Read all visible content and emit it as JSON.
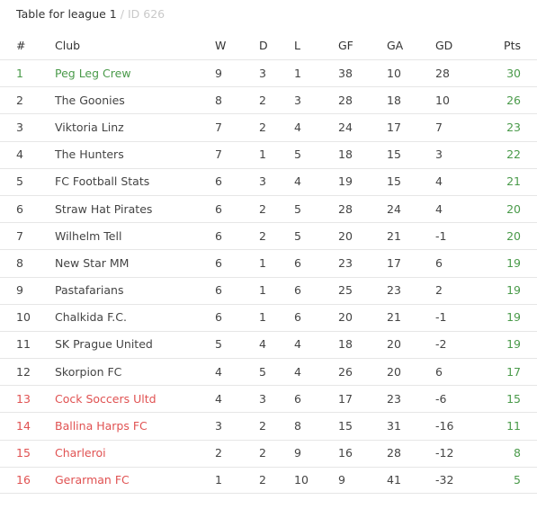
{
  "title": {
    "main": "Table for league 1",
    "separator": "/",
    "id_text": "ID 626"
  },
  "colors": {
    "top_zone": "#4a9a4a",
    "relegation_zone": "#e05252",
    "points": "#4a9a4a"
  },
  "columns": {
    "pos": "#",
    "club": "Club",
    "w": "W",
    "d": "D",
    "l": "L",
    "gf": "GF",
    "ga": "GA",
    "gd": "GD",
    "pts": "Pts"
  },
  "rows": [
    {
      "pos": "1",
      "club": "Peg Leg Crew",
      "w": "9",
      "d": "3",
      "l": "1",
      "gf": "38",
      "ga": "10",
      "gd": "28",
      "pts": "30",
      "zone": "top"
    },
    {
      "pos": "2",
      "club": "The Goonies",
      "w": "8",
      "d": "2",
      "l": "3",
      "gf": "28",
      "ga": "18",
      "gd": "10",
      "pts": "26",
      "zone": ""
    },
    {
      "pos": "3",
      "club": "Viktoria Linz",
      "w": "7",
      "d": "2",
      "l": "4",
      "gf": "24",
      "ga": "17",
      "gd": "7",
      "pts": "23",
      "zone": ""
    },
    {
      "pos": "4",
      "club": "The Hunters",
      "w": "7",
      "d": "1",
      "l": "5",
      "gf": "18",
      "ga": "15",
      "gd": "3",
      "pts": "22",
      "zone": ""
    },
    {
      "pos": "5",
      "club": "FC Football Stats",
      "w": "6",
      "d": "3",
      "l": "4",
      "gf": "19",
      "ga": "15",
      "gd": "4",
      "pts": "21",
      "zone": ""
    },
    {
      "pos": "6",
      "club": "Straw Hat Pirates",
      "w": "6",
      "d": "2",
      "l": "5",
      "gf": "28",
      "ga": "24",
      "gd": "4",
      "pts": "20",
      "zone": ""
    },
    {
      "pos": "7",
      "club": "Wilhelm Tell",
      "w": "6",
      "d": "2",
      "l": "5",
      "gf": "20",
      "ga": "21",
      "gd": "-1",
      "pts": "20",
      "zone": ""
    },
    {
      "pos": "8",
      "club": "New Star MM",
      "w": "6",
      "d": "1",
      "l": "6",
      "gf": "23",
      "ga": "17",
      "gd": "6",
      "pts": "19",
      "zone": ""
    },
    {
      "pos": "9",
      "club": "Pastafarians",
      "w": "6",
      "d": "1",
      "l": "6",
      "gf": "25",
      "ga": "23",
      "gd": "2",
      "pts": "19",
      "zone": ""
    },
    {
      "pos": "10",
      "club": "Chalkida F.C.",
      "w": "6",
      "d": "1",
      "l": "6",
      "gf": "20",
      "ga": "21",
      "gd": "-1",
      "pts": "19",
      "zone": ""
    },
    {
      "pos": "11",
      "club": "SK Prague United",
      "w": "5",
      "d": "4",
      "l": "4",
      "gf": "18",
      "ga": "20",
      "gd": "-2",
      "pts": "19",
      "zone": ""
    },
    {
      "pos": "12",
      "club": "Skorpion FC",
      "w": "4",
      "d": "5",
      "l": "4",
      "gf": "26",
      "ga": "20",
      "gd": "6",
      "pts": "17",
      "zone": ""
    },
    {
      "pos": "13",
      "club": "Cock Soccers Ultd",
      "w": "4",
      "d": "3",
      "l": "6",
      "gf": "17",
      "ga": "23",
      "gd": "-6",
      "pts": "15",
      "zone": "rel"
    },
    {
      "pos": "14",
      "club": "Ballina Harps FC",
      "w": "3",
      "d": "2",
      "l": "8",
      "gf": "15",
      "ga": "31",
      "gd": "-16",
      "pts": "11",
      "zone": "rel"
    },
    {
      "pos": "15",
      "club": "Charleroi",
      "w": "2",
      "d": "2",
      "l": "9",
      "gf": "16",
      "ga": "28",
      "gd": "-12",
      "pts": "8",
      "zone": "rel"
    },
    {
      "pos": "16",
      "club": "Gerarman FC",
      "w": "1",
      "d": "2",
      "l": "10",
      "gf": "9",
      "ga": "41",
      "gd": "-32",
      "pts": "5",
      "zone": "rel"
    }
  ]
}
